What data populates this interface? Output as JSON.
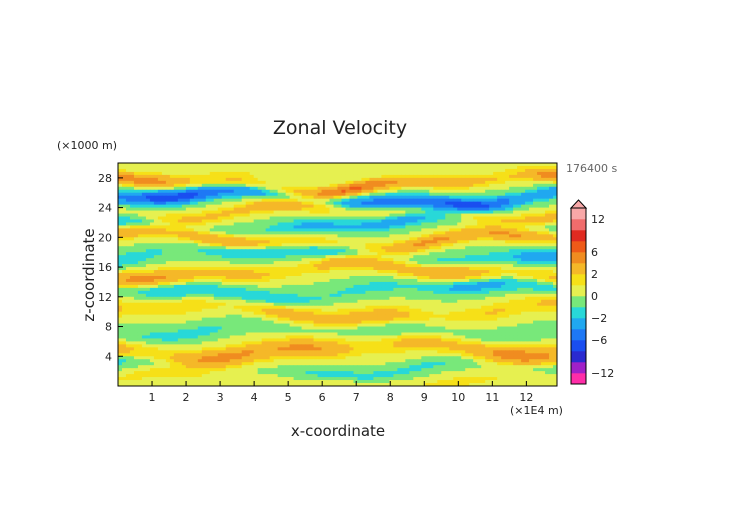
{
  "chart_data": {
    "type": "heatmap",
    "title": "Zonal Velocity",
    "xlabel": "x-coordinate",
    "ylabel": "z-coordinate",
    "x_unit": "(×1E4 m)",
    "y_unit": "(×1000 m)",
    "time_label": "176400 s",
    "xlim": [
      0,
      12.9
    ],
    "ylim": [
      0,
      30
    ],
    "x_ticks": [
      1,
      2,
      3,
      4,
      5,
      6,
      7,
      8,
      9,
      10,
      11,
      12
    ],
    "y_ticks": [
      4,
      8,
      12,
      16,
      20,
      24,
      28
    ],
    "colorbar": {
      "ticks": [
        "12",
        "6",
        "2",
        "0",
        "−2",
        "−6",
        "−12"
      ],
      "levels": [
        -14,
        -12,
        -10,
        -8,
        -6,
        -4,
        -2,
        -1,
        0,
        1,
        2,
        4,
        6,
        8,
        10,
        12,
        14
      ],
      "colors": [
        "#ff2da8",
        "#a020c8",
        "#2a2ad0",
        "#1a4ef0",
        "#1e78f5",
        "#20a8f0",
        "#28d8d8",
        "#78e87a",
        "#e6f050",
        "#f6e018",
        "#f5b828",
        "#f08c20",
        "#ee5a18",
        "#e02a20",
        "#f06c6c",
        "#f8a8a8"
      ],
      "extend": "max"
    },
    "bands": [
      {
        "z": 0.8,
        "amp": 1.4,
        "w": 0.9
      },
      {
        "z": 2.2,
        "amp": -1.6,
        "w": 0.8
      },
      {
        "z": 4.8,
        "amp": 4.6,
        "w": 1.3
      },
      {
        "z": 7.4,
        "amp": -1.4,
        "w": 1.0
      },
      {
        "z": 10.0,
        "amp": 3.2,
        "w": 1.2
      },
      {
        "z": 12.8,
        "amp": -2.4,
        "w": 1.0
      },
      {
        "z": 15.4,
        "amp": 4.2,
        "w": 1.0
      },
      {
        "z": 17.6,
        "amp": -2.6,
        "w": 1.0
      },
      {
        "z": 19.6,
        "amp": 4.4,
        "w": 0.9
      },
      {
        "z": 21.6,
        "amp": -2.6,
        "w": 0.9
      },
      {
        "z": 23.4,
        "amp": 3.2,
        "w": 0.9
      },
      {
        "z": 25.2,
        "amp": -6.5,
        "w": 0.9
      },
      {
        "z": 27.2,
        "amp": 5.6,
        "w": 0.8
      },
      {
        "z": 29.2,
        "amp": 0.8,
        "w": 0.8
      }
    ]
  }
}
